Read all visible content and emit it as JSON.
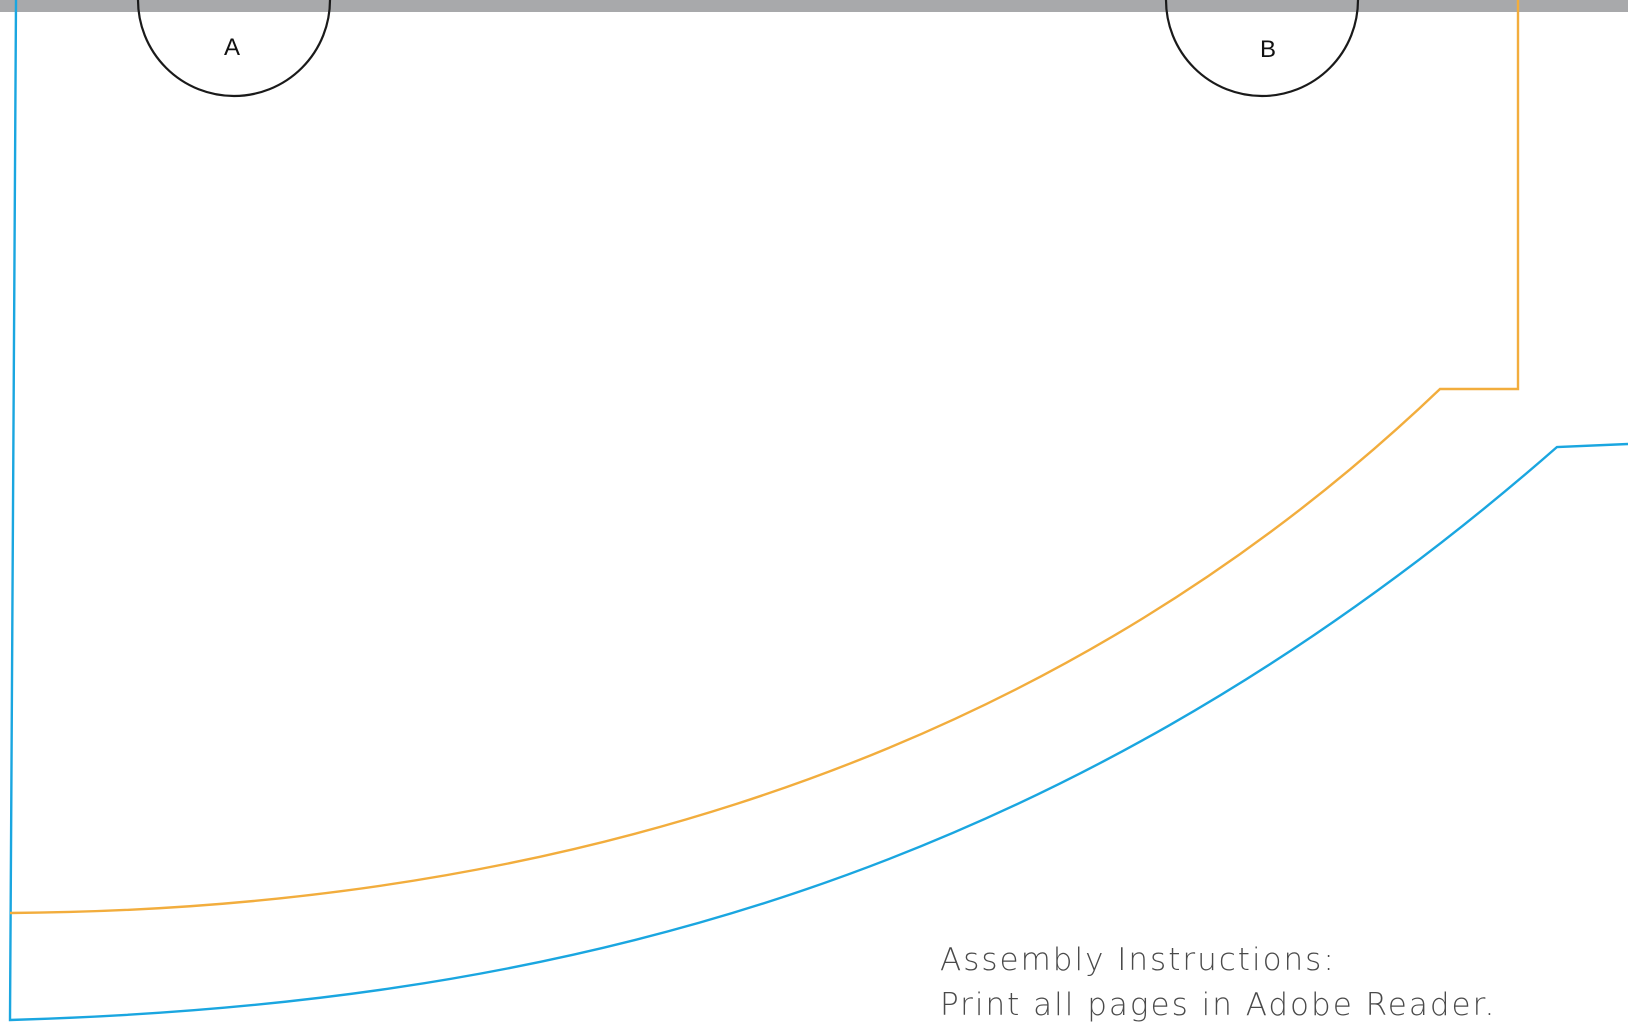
{
  "markers": [
    {
      "label": "A"
    },
    {
      "label": "B"
    }
  ],
  "instructions": {
    "heading": "Assembly Instructions:",
    "line1": "Print all pages in Adobe Reader."
  },
  "colors": {
    "top_band": "#a8a9ab",
    "cut_line": "#1aa6e0",
    "fold_line": "#f2ad3d",
    "marker_circle": "#1a1a1a"
  }
}
